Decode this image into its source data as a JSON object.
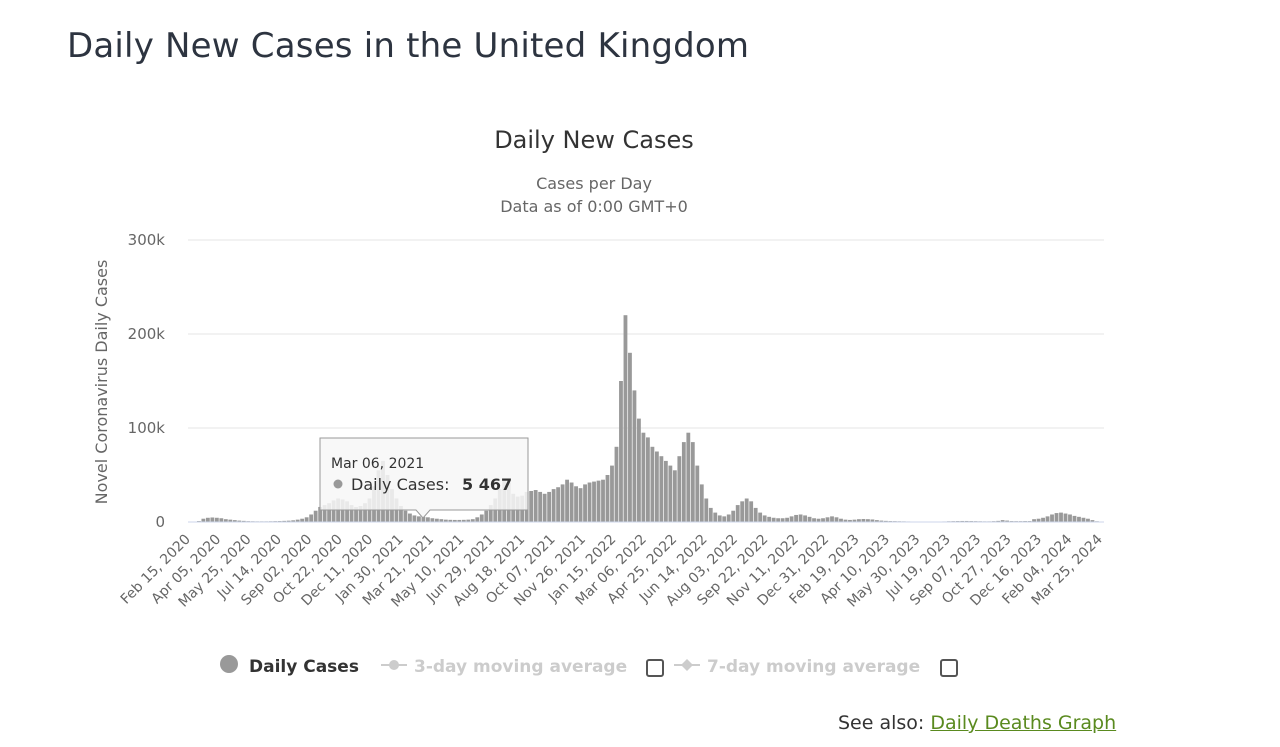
{
  "page": {
    "title": "Daily New Cases in the United Kingdom",
    "see_also_label": "See also:",
    "see_also_link": "Daily Deaths Graph"
  },
  "colors": {
    "bars": "#999999",
    "grid": "#e6e6e6",
    "legend_inactive": "#cccccc",
    "link": "#5a8a1f",
    "title": "#333333"
  },
  "chart_data": {
    "type": "bar",
    "title": "Daily New Cases",
    "subtitle_line1": "Cases per Day",
    "subtitle_line2": "Data as of 0:00 GMT+0",
    "ylabel": "Novel Coronavirus Daily Cases",
    "xlabel": "",
    "ylim": [
      0,
      300000
    ],
    "yticks": [
      0,
      100000,
      200000,
      300000
    ],
    "ytick_labels": [
      "0",
      "100k",
      "200k",
      "300k"
    ],
    "x_tick_labels": [
      "Feb 15, 2020",
      "Apr 05, 2020",
      "May 25, 2020",
      "Jul 14, 2020",
      "Sep 02, 2020",
      "Oct 22, 2020",
      "Dec 11, 2020",
      "Jan 30, 2021",
      "Mar 21, 2021",
      "May 10, 2021",
      "Jun 29, 2021",
      "Aug 18, 2021",
      "Oct 07, 2021",
      "Nov 26, 2021",
      "Jan 15, 2022",
      "Mar 06, 2022",
      "Apr 25, 2022",
      "Jun 14, 2022",
      "Aug 03, 2022",
      "Sep 22, 2022",
      "Nov 11, 2022",
      "Dec 31, 2022",
      "Feb 19, 2023",
      "Apr 10, 2023",
      "May 30, 2023",
      "Jul 19, 2023",
      "Sep 07, 2023",
      "Oct 27, 2023",
      "Dec 16, 2023",
      "Feb 04, 2024",
      "Mar 25, 2024"
    ],
    "grid": true,
    "series": [
      {
        "name": "Daily Cases",
        "granularity_days": 7,
        "first_period": "Feb 15, 2020",
        "values": [
          100,
          300,
          1000,
          3500,
          4500,
          4800,
          4500,
          4000,
          3000,
          2500,
          2000,
          1500,
          1200,
          900,
          800,
          700,
          700,
          700,
          800,
          900,
          1000,
          1200,
          1400,
          1800,
          2500,
          3500,
          5000,
          8000,
          12000,
          16000,
          18000,
          20000,
          23000,
          25000,
          24000,
          22000,
          18000,
          16000,
          17000,
          20000,
          25000,
          38000,
          55000,
          65000,
          50000,
          35000,
          25000,
          17000,
          12000,
          9000,
          7000,
          6000,
          5500,
          5000,
          4000,
          3500,
          3000,
          2500,
          2300,
          2200,
          2200,
          2300,
          2500,
          3000,
          5000,
          8000,
          12000,
          18000,
          25000,
          35000,
          45000,
          42000,
          30000,
          27000,
          28000,
          32000,
          33000,
          34000,
          32000,
          30000,
          32000,
          35000,
          37000,
          40000,
          45000,
          42000,
          38000,
          36000,
          40000,
          42000,
          43000,
          44000,
          45000,
          50000,
          60000,
          80000,
          150000,
          220000,
          180000,
          140000,
          110000,
          95000,
          90000,
          80000,
          75000,
          70000,
          65000,
          60000,
          55000,
          70000,
          85000,
          95000,
          85000,
          60000,
          40000,
          25000,
          15000,
          10000,
          7000,
          6000,
          8000,
          12000,
          18000,
          22000,
          25000,
          22000,
          15000,
          10000,
          7000,
          5500,
          4500,
          4000,
          4000,
          4500,
          6000,
          7500,
          8000,
          7000,
          5500,
          4000,
          3500,
          4000,
          5000,
          6000,
          5000,
          3500,
          2500,
          2200,
          2500,
          3000,
          3200,
          3000,
          2700,
          2000,
          1500,
          1200,
          1000,
          900,
          800,
          700,
          600,
          500,
          450,
          400,
          400,
          400,
          450,
          500,
          600,
          800,
          900,
          1000,
          1100,
          1100,
          1000,
          900,
          800,
          700,
          700,
          900,
          1200,
          2000,
          1500,
          1000,
          900,
          900,
          1000,
          1000,
          3000,
          3500,
          4500,
          6000,
          8000,
          9500,
          10000,
          9000,
          8000,
          6500,
          5500,
          4500,
          3500,
          2000,
          800,
          300
        ]
      }
    ],
    "legend": {
      "placement": "bottom-center",
      "items": [
        {
          "label": "Daily Cases",
          "active": true
        },
        {
          "label": "3-day moving average",
          "active": false
        },
        {
          "label": "7-day moving average",
          "active": false
        }
      ]
    },
    "tooltip": {
      "date": "Mar 06, 2021",
      "series_label": "Daily Cases:",
      "value": 5467,
      "value_text": "5 467"
    }
  }
}
